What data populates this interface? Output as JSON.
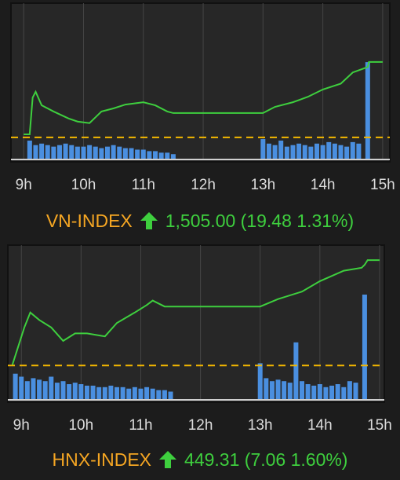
{
  "chart_data": [
    {
      "type": "line",
      "title": "VN-INDEX",
      "last": "1,505.00",
      "change": "(19.48 1.31%)",
      "xlim": [
        8.84,
        15.08
      ],
      "ylim": [
        1480,
        1519
      ],
      "xticks": [
        {
          "value": 9,
          "label": "9h"
        },
        {
          "value": 10,
          "label": "10h"
        },
        {
          "value": 11,
          "label": "11h"
        },
        {
          "value": 12,
          "label": "12h"
        },
        {
          "value": 13,
          "label": "13h"
        },
        {
          "value": 14,
          "label": "14h"
        },
        {
          "value": 15,
          "label": "15h"
        }
      ],
      "grid": true,
      "reference": 1485.52,
      "reference_color": "#f5b800",
      "x": [
        9.0,
        9.1,
        9.15,
        9.2,
        9.3,
        9.5,
        9.75,
        9.9,
        10.1,
        10.3,
        10.5,
        10.7,
        11.0,
        11.2,
        11.4,
        11.5,
        13.0,
        13.2,
        13.5,
        13.75,
        14.0,
        14.3,
        14.5,
        14.75,
        14.77,
        15.0
      ],
      "values": [
        1486.3,
        1486.3,
        1495.8,
        1497.3,
        1493.8,
        1492.2,
        1490.4,
        1489.6,
        1489.2,
        1492.2,
        1493.0,
        1494.0,
        1494.6,
        1493.8,
        1492.2,
        1491.8,
        1491.8,
        1493.4,
        1494.6,
        1496.0,
        1497.9,
        1499.4,
        1502.3,
        1503.7,
        1505.0,
        1505.0
      ],
      "color": "#3ecf3e",
      "volume": {
        "ylim": [
          0,
          100
        ],
        "color": "#4a8fe0",
        "x": [
          9.1,
          9.2,
          9.3,
          9.4,
          9.5,
          9.6,
          9.7,
          9.8,
          9.9,
          10.0,
          10.1,
          10.2,
          10.3,
          10.4,
          10.5,
          10.6,
          10.7,
          10.8,
          10.9,
          11.0,
          11.1,
          11.2,
          11.3,
          11.4,
          11.5,
          13.0,
          13.1,
          13.2,
          13.3,
          13.4,
          13.5,
          13.6,
          13.7,
          13.8,
          13.9,
          14.0,
          14.1,
          14.2,
          14.3,
          14.4,
          14.5,
          14.6,
          14.75
        ],
        "values": [
          12,
          9,
          10,
          9,
          8,
          9,
          10,
          9,
          8,
          8,
          9,
          8,
          7,
          8,
          9,
          8,
          7,
          7,
          6,
          6,
          5,
          5,
          4,
          4,
          3,
          13,
          10,
          9,
          12,
          8,
          9,
          10,
          9,
          8,
          10,
          9,
          11,
          10,
          9,
          8,
          11,
          10,
          64
        ]
      }
    },
    {
      "type": "line",
      "title": "HNX-INDEX",
      "last": "449.31",
      "change": "(7.06 1.60%)",
      "xlim": [
        8.8,
        15.04
      ],
      "ylim": [
        440,
        450
      ],
      "xticks": [
        {
          "value": 9,
          "label": "9h"
        },
        {
          "value": 10,
          "label": "10h"
        },
        {
          "value": 11,
          "label": "11h"
        },
        {
          "value": 12,
          "label": "12h"
        },
        {
          "value": 13,
          "label": "13h"
        },
        {
          "value": 14,
          "label": "14h"
        },
        {
          "value": 15,
          "label": "15h"
        }
      ],
      "grid": true,
      "reference": 442.25,
      "reference_color": "#f5b800",
      "x": [
        8.85,
        9.05,
        9.15,
        9.3,
        9.5,
        9.7,
        9.9,
        10.1,
        10.4,
        10.6,
        10.9,
        11.1,
        11.2,
        11.4,
        13.0,
        13.3,
        13.7,
        14.0,
        14.4,
        14.7,
        14.75,
        14.8,
        15.0
      ],
      "values": [
        442.3,
        444.8,
        445.8,
        445.3,
        444.8,
        443.9,
        444.4,
        444.4,
        444.2,
        445.1,
        445.8,
        446.3,
        446.6,
        446.2,
        446.2,
        446.7,
        447.2,
        447.9,
        448.6,
        448.8,
        449.0,
        449.31,
        449.31
      ],
      "color": "#3ecf3e",
      "volume": {
        "ylim": [
          0,
          100
        ],
        "color": "#4a8fe0",
        "x": [
          8.9,
          9.0,
          9.1,
          9.2,
          9.3,
          9.4,
          9.5,
          9.6,
          9.7,
          9.8,
          9.9,
          10.0,
          10.1,
          10.2,
          10.3,
          10.4,
          10.5,
          10.6,
          10.7,
          10.8,
          10.9,
          11.0,
          11.1,
          11.2,
          11.3,
          11.4,
          11.5,
          13.0,
          13.1,
          13.2,
          13.3,
          13.4,
          13.5,
          13.6,
          13.7,
          13.8,
          13.9,
          14.0,
          14.1,
          14.2,
          14.3,
          14.4,
          14.5,
          14.6,
          14.75
        ],
        "values": [
          17,
          15,
          12,
          14,
          13,
          12,
          15,
          11,
          12,
          10,
          11,
          10,
          9,
          9,
          8,
          8,
          9,
          8,
          8,
          7,
          8,
          7,
          8,
          7,
          6,
          6,
          5,
          24,
          14,
          12,
          13,
          12,
          11,
          38,
          12,
          10,
          9,
          10,
          8,
          9,
          10,
          8,
          12,
          11,
          70
        ]
      }
    }
  ]
}
